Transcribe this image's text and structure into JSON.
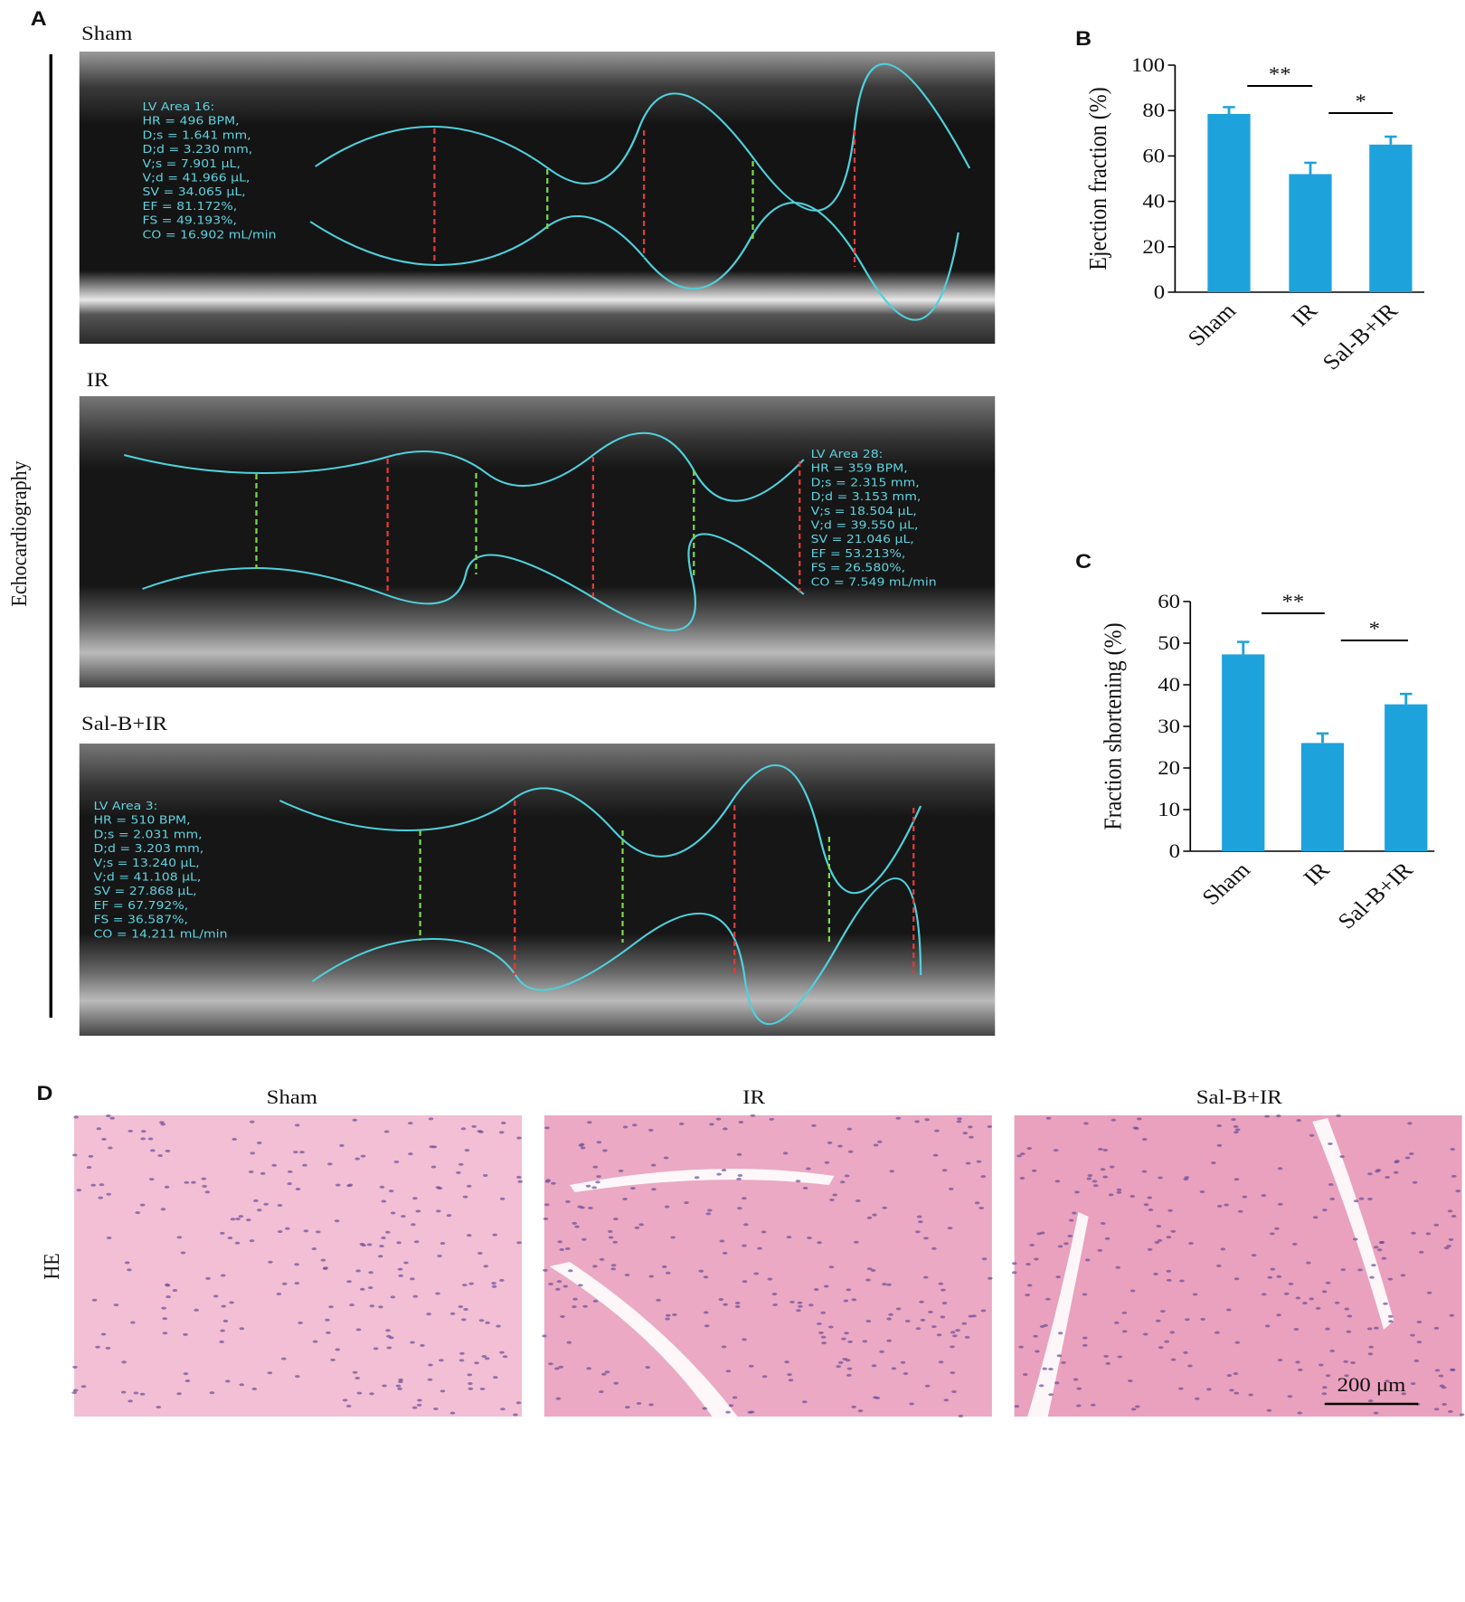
{
  "panel_labels": [
    "A",
    "B",
    "C",
    "D"
  ],
  "echo": {
    "side_label": "Echocardiography",
    "panels": [
      {
        "title": "Sham",
        "lines": [
          "LV Area 16:",
          "HR = 496 BPM,",
          "D;s = 1.641 mm,",
          "D;d = 3.230 mm,",
          "V;s = 7.901 µL,",
          "V;d = 41.966 µL,",
          "SV = 34.065 µL,",
          "EF = 81.172%,",
          "FS = 49.193%,",
          "CO = 16.902 mL/min"
        ]
      },
      {
        "title": "IR",
        "lines": [
          "LV Area 28:",
          "HR = 359 BPM,",
          "D;s = 2.315 mm,",
          "D;d = 3.153 mm,",
          "V;s = 18.504 µL,",
          "V;d = 39.550 µL,",
          "SV = 21.046 µL,",
          "EF = 53.213%,",
          "FS = 26.580%,",
          "CO = 7.549 mL/min"
        ]
      },
      {
        "title": "Sal-B+IR",
        "lines": [
          "LV Area 3:",
          "HR = 510 BPM,",
          "D;s = 2.031 mm,",
          "D;d = 3.203 mm,",
          "V;s = 13.240 µL,",
          "V;d = 41.108 µL,",
          "SV = 27.868 µL,",
          "EF = 67.792%,",
          "FS = 36.587%,",
          "CO = 14.211 mL/min"
        ]
      }
    ]
  },
  "chart_data": [
    {
      "type": "bar",
      "ylabel": "Ejection fraction (%)",
      "categories": [
        "Sham",
        "IR",
        "Sal-B+IR"
      ],
      "values": [
        78.5,
        52,
        65
      ],
      "errors": [
        3,
        5,
        3.5
      ],
      "color": "#1ea2dc",
      "ylim": [
        0,
        100
      ],
      "yticks": [
        0,
        20,
        40,
        60,
        80,
        100
      ],
      "annotations": [
        "**",
        "*"
      ]
    },
    {
      "type": "bar",
      "ylabel": "Fraction shortening (%)",
      "categories": [
        "Sham",
        "IR",
        "Sal-B+IR"
      ],
      "values": [
        47.3,
        26,
        35.3
      ],
      "errors": [
        3,
        2.3,
        2.5
      ],
      "color": "#1ea2dc",
      "ylim": [
        0,
        60
      ],
      "yticks": [
        0,
        10,
        20,
        30,
        40,
        50,
        60
      ],
      "annotations": [
        "**",
        "*"
      ]
    }
  ],
  "histology": {
    "row_label": "HE",
    "titles": [
      "Sham",
      "IR",
      "Sal-B+IR"
    ],
    "scale_bar": "200 μm"
  }
}
